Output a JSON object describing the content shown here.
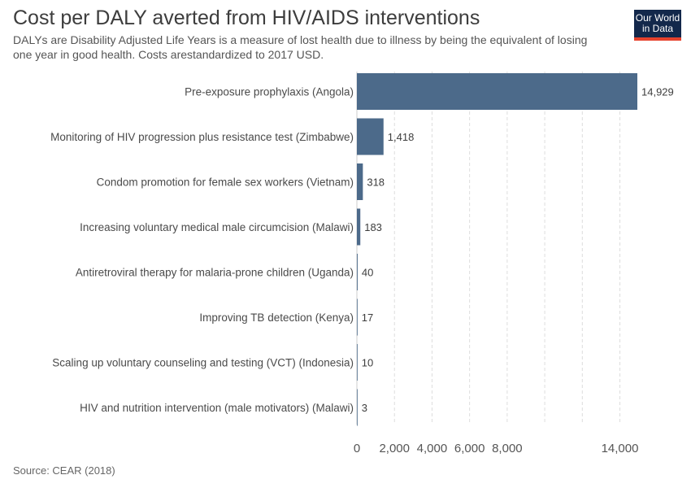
{
  "header": {
    "title": "Cost per DALY averted from HIV/AIDS interventions",
    "subtitle": "DALYs are Disability Adjusted Life Years is a measure of lost health due to illness by being the equivalent of losing one year in good health. Costs arestandardized to 2017 USD."
  },
  "logo": {
    "line1": "Our World",
    "line2": "in Data"
  },
  "footer": {
    "source": "Source: CEAR (2018)"
  },
  "colors": {
    "bar": "#4c6a8a",
    "grid": "#dddddd",
    "axis": "#cccccc"
  },
  "chart_data": {
    "type": "bar",
    "orientation": "horizontal",
    "title": "Cost per DALY averted from HIV/AIDS interventions",
    "categories": [
      "Pre-exposure prophylaxis (Angola)",
      "Monitoring of HIV progression plus resistance test (Zimbabwe)",
      "Condom promotion for female sex workers (Vietnam)",
      "Increasing voluntary medical male circumcision (Malawi)",
      "Antiretroviral therapy for malaria-prone children (Uganda)",
      "Improving TB detection (Kenya)",
      "Scaling up voluntary counseling and testing (VCT) (Indonesia)",
      "HIV and nutrition intervention (male motivators) (Malawi)"
    ],
    "values": [
      14929,
      1418,
      318,
      183,
      40,
      17,
      10,
      3
    ],
    "value_labels": [
      "14,929",
      "1,418",
      "318",
      "183",
      "40",
      "17",
      "10",
      "3"
    ],
    "xlim": [
      0,
      14929
    ],
    "gridlines": [
      2000,
      4000,
      6000,
      8000,
      10000,
      12000,
      14000
    ],
    "ticks": [
      {
        "value": 0,
        "label": "0"
      },
      {
        "value": 2000,
        "label": "2,000"
      },
      {
        "value": 4000,
        "label": "4,000"
      },
      {
        "value": 6000,
        "label": "6,000"
      },
      {
        "value": 8000,
        "label": "8,000"
      },
      {
        "value": 14000,
        "label": "14,000"
      }
    ],
    "grid": true,
    "xlabel": "",
    "ylabel": ""
  }
}
